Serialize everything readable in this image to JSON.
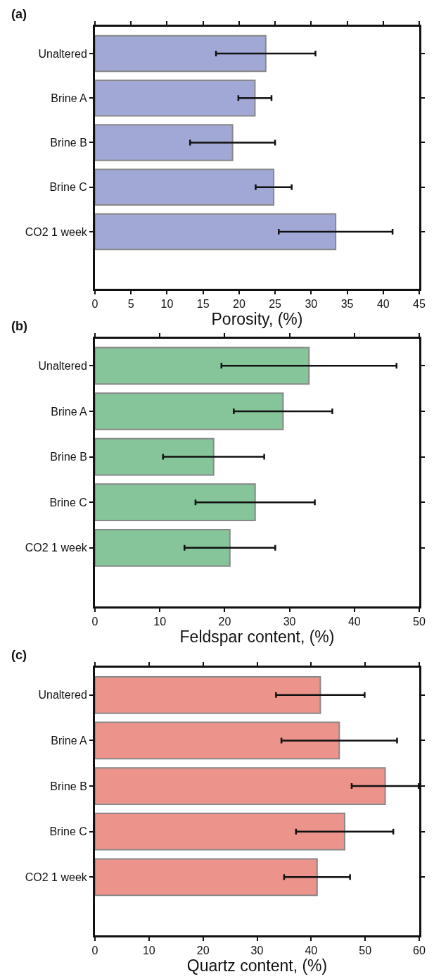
{
  "chart_data": [
    {
      "type": "bar",
      "orientation": "horizontal",
      "title": "(a)",
      "xlabel": "Porosity, (%)",
      "categories": [
        "Unaltered",
        "Brine A",
        "Brine B",
        "Brine C",
        "CO2 1 week"
      ],
      "values": [
        23.7,
        22.2,
        19.1,
        24.8,
        33.4
      ],
      "errors": [
        6.9,
        2.3,
        5.9,
        2.5,
        7.9
      ],
      "color": "#a1a8d6",
      "xlim": [
        0,
        45
      ],
      "xticks": [
        0,
        5,
        10,
        15,
        20,
        25,
        30,
        35,
        40,
        45
      ]
    },
    {
      "type": "bar",
      "orientation": "horizontal",
      "title": "(b)",
      "xlabel": "Feldspar content, (%)",
      "categories": [
        "Unaltered",
        "Brine A",
        "Brine B",
        "Brine C",
        "CO2 1 week"
      ],
      "values": [
        33.0,
        29.0,
        18.3,
        24.7,
        20.8
      ],
      "errors": [
        13.5,
        7.6,
        7.8,
        9.2,
        7.0
      ],
      "color": "#86c49a",
      "xlim": [
        0,
        50
      ],
      "xticks": [
        0,
        10,
        20,
        30,
        40,
        50
      ]
    },
    {
      "type": "bar",
      "orientation": "horizontal",
      "title": "(c)",
      "xlabel": "Quartz content, (%)",
      "categories": [
        "Unaltered",
        "Brine A",
        "Brine B",
        "Brine C",
        "CO2 1 week"
      ],
      "values": [
        41.7,
        45.2,
        53.7,
        46.2,
        41.1
      ],
      "errors": [
        8.2,
        10.7,
        6.2,
        9.0,
        6.1
      ],
      "color": "#ec938b",
      "xlim": [
        0,
        60
      ],
      "xticks": [
        0,
        10,
        20,
        30,
        40,
        50,
        60
      ]
    }
  ]
}
